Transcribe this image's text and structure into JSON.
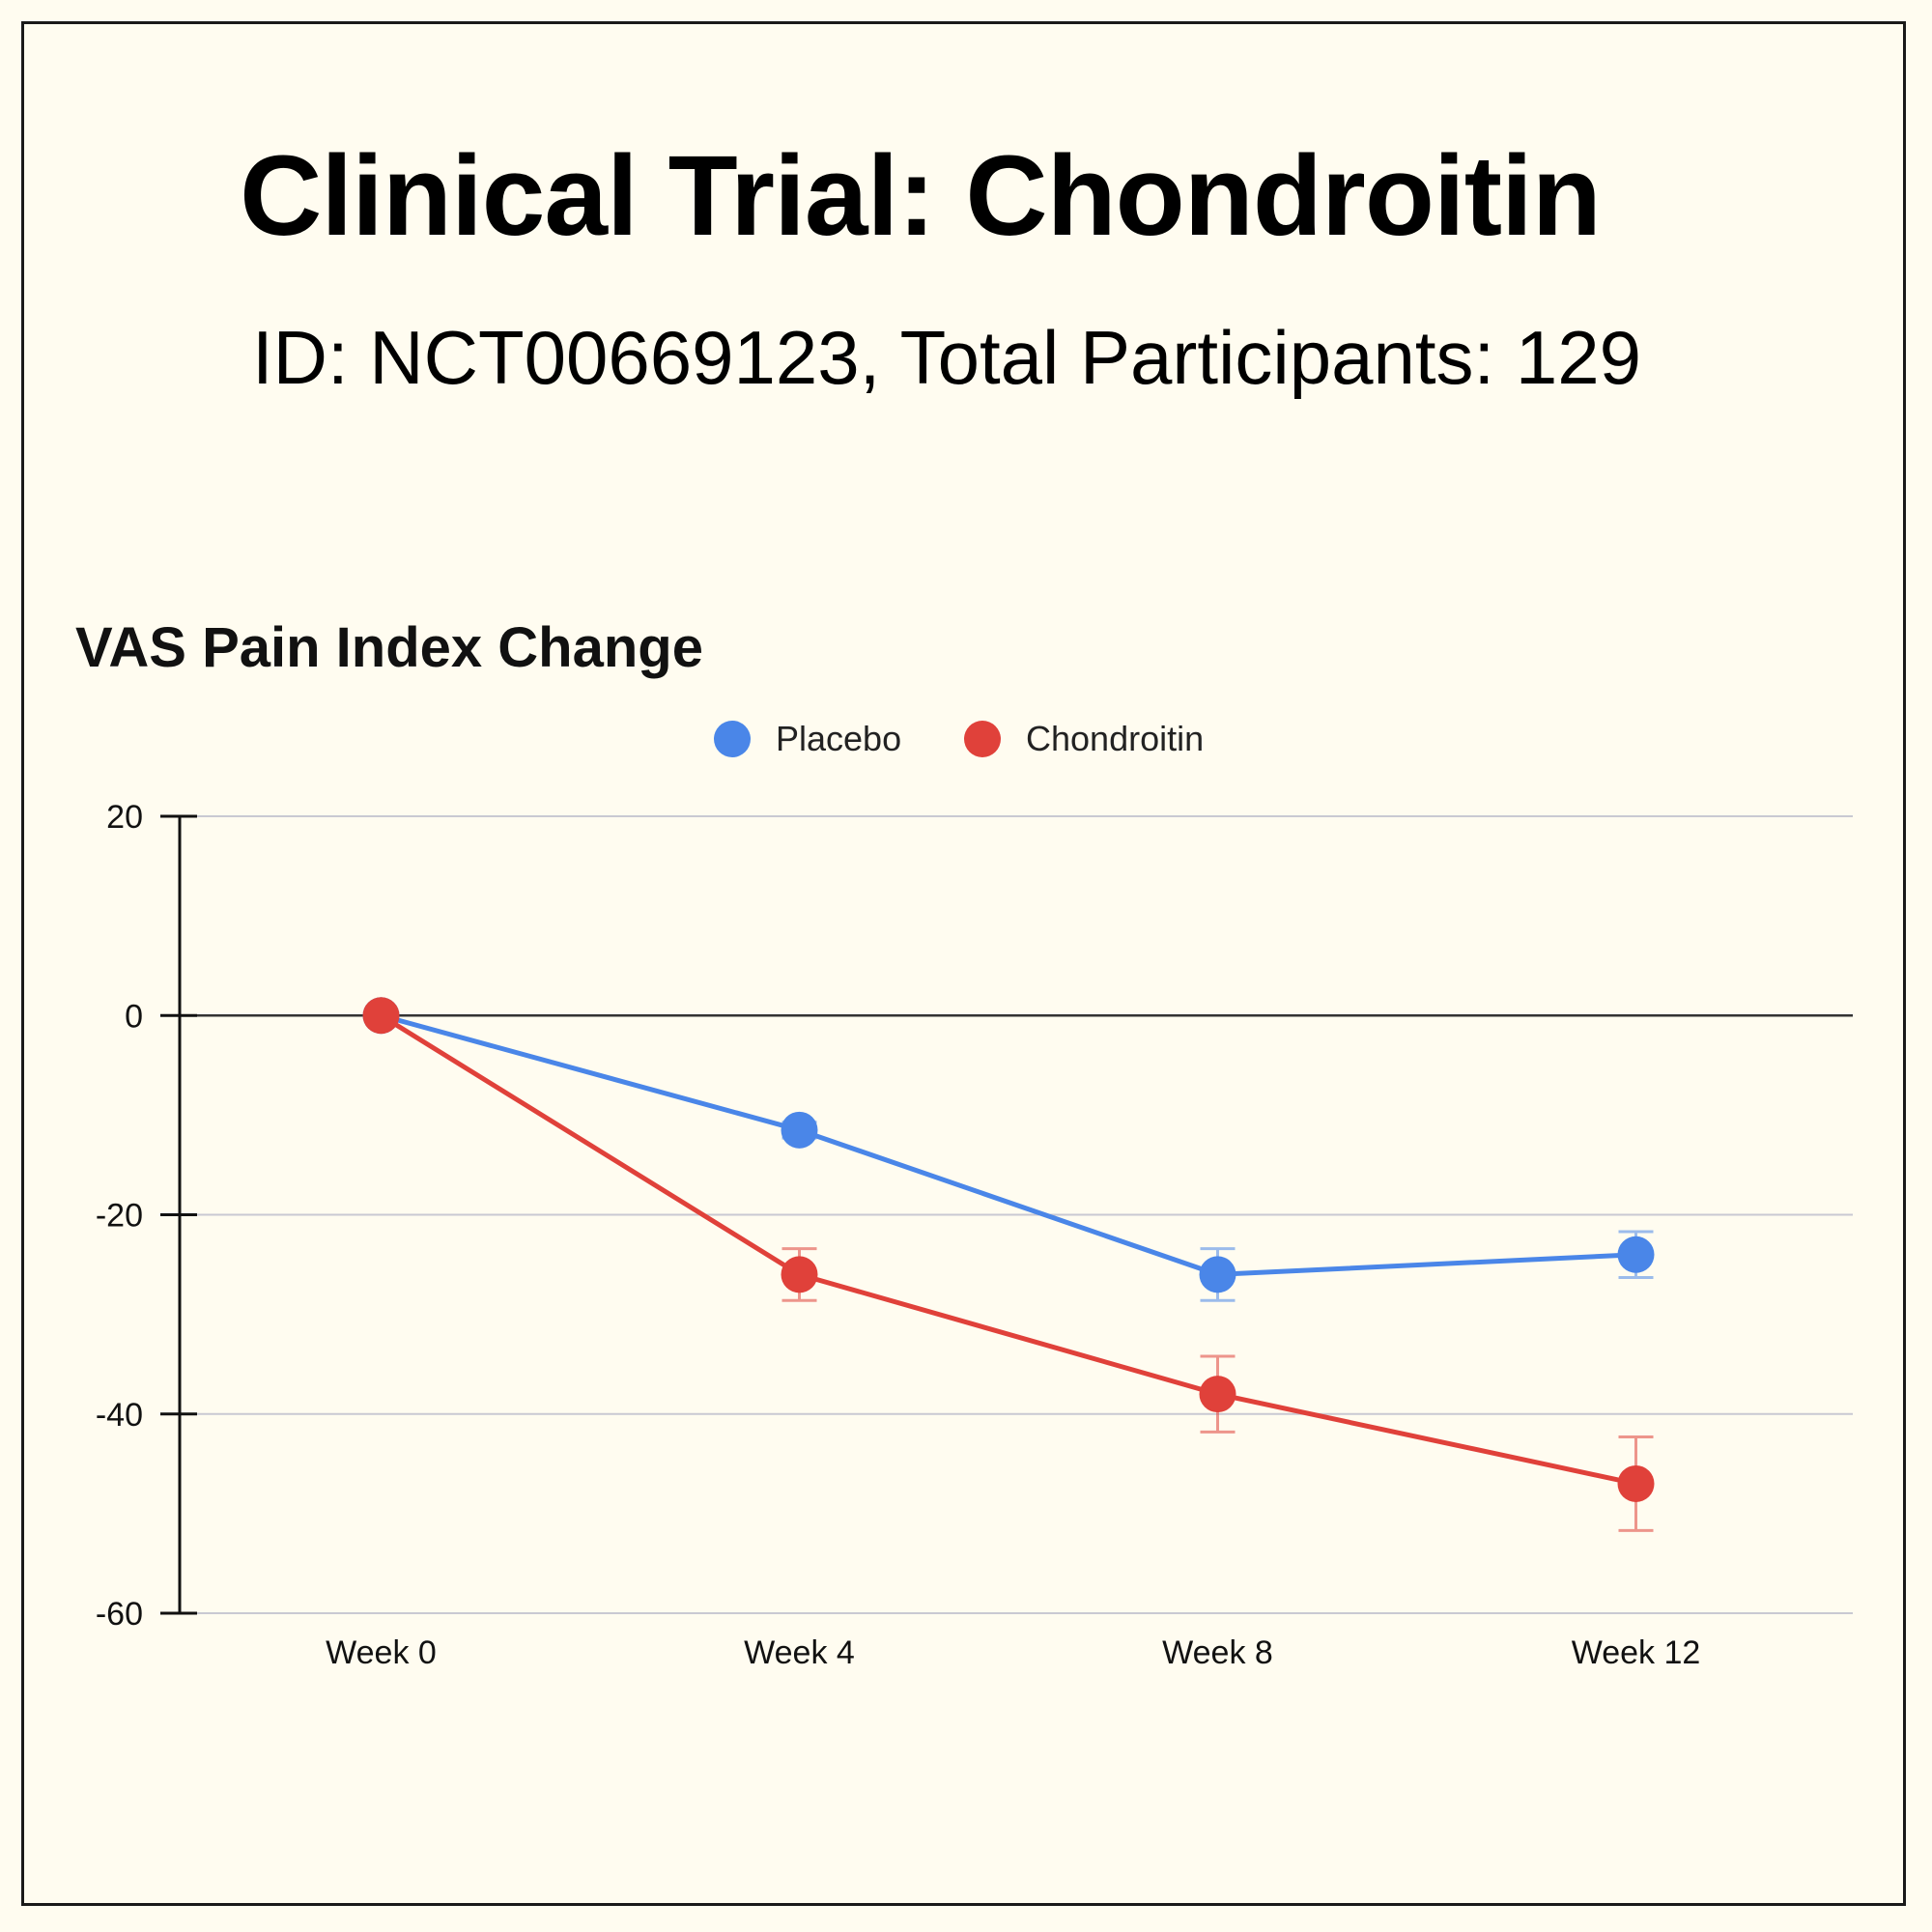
{
  "header": {
    "title": "Clinical Trial: Chondroitin",
    "subtitle": "ID: NCT00669123, Total Participants: 129"
  },
  "colors": {
    "background": "#fffcf0",
    "placebo": "#4a86e8",
    "chondroitin": "#e0413a",
    "gridline": "#c9c9d2",
    "zeroline": "#333333"
  },
  "chart_data": {
    "type": "line",
    "title": "VAS Pain Index Change",
    "xlabel": "",
    "ylabel": "",
    "categories": [
      "Week 0",
      "Week 4",
      "Week 8",
      "Week 12"
    ],
    "ylim": [
      -60,
      20
    ],
    "yticks": [
      20,
      0,
      -20,
      -40,
      -60
    ],
    "grid": true,
    "legend_position": "top-center",
    "series": [
      {
        "name": "Placebo",
        "color": "#4a86e8",
        "values": [
          0,
          -11.5,
          -26,
          -24
        ],
        "error": [
          0,
          0.8,
          2.6,
          2.3
        ]
      },
      {
        "name": "Chondroitin",
        "color": "#e0413a",
        "values": [
          0,
          -26,
          -38,
          -47
        ],
        "error": [
          0,
          2.6,
          3.8,
          4.7
        ]
      }
    ]
  }
}
